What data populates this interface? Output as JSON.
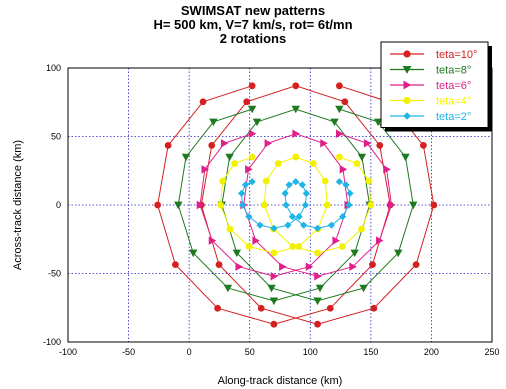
{
  "chart_data": {
    "type": "line",
    "title_lines": [
      "SWIMSAT  new patterns",
      "H= 500 km, V=7 km/s, rot= 6t/mn",
      "2  rotations"
    ],
    "xlabel": "Along-track distance (km)",
    "ylabel": "Across-track distance (km)",
    "xlim": [
      -100,
      250
    ],
    "ylim": [
      -100,
      100
    ],
    "xticks": [
      -100,
      -50,
      0,
      50,
      100,
      150,
      200,
      250
    ],
    "yticks": [
      -100,
      -50,
      0,
      50,
      100
    ],
    "grid": true,
    "legend_position": "top-right",
    "series": [
      {
        "name": "teta=10°",
        "color": "#d42020",
        "marker": "circle",
        "radius": 87,
        "center_x": 52,
        "drift": 36,
        "points": 25
      },
      {
        "name": "teta=8°",
        "color": "#1e7a1e",
        "marker": "triangle-down",
        "radius": 70,
        "center_x": 52,
        "drift": 36,
        "points": 25
      },
      {
        "name": "teta=6°",
        "color": "#e0208a",
        "marker": "triangle-right",
        "radius": 52,
        "center_x": 52,
        "drift": 36,
        "points": 25
      },
      {
        "name": "teta=4°",
        "color": "#f2f200",
        "marker": "circle",
        "radius": 35,
        "center_x": 52,
        "drift": 36,
        "points": 25
      },
      {
        "name": "teta=2°",
        "color": "#1eb4e6",
        "marker": "diamond",
        "radius": 17,
        "center_x": 52,
        "drift": 36,
        "points": 25
      }
    ]
  }
}
